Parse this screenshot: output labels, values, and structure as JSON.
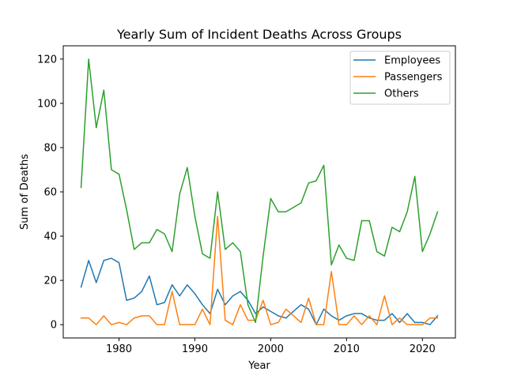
{
  "chart_data": {
    "type": "line",
    "title": "Yearly Sum of Incident Deaths Across Groups",
    "xlabel": "Year",
    "ylabel": "Sum of Deaths",
    "xlim": [
      1972.65,
      2024.35
    ],
    "ylim": [
      -6,
      126
    ],
    "xticks": [
      1980,
      1990,
      2000,
      2010,
      2020
    ],
    "yticks": [
      0,
      20,
      40,
      60,
      80,
      100,
      120
    ],
    "grid": false,
    "legend_position": "top-right",
    "x": [
      1975,
      1976,
      1977,
      1978,
      1979,
      1980,
      1981,
      1982,
      1983,
      1984,
      1985,
      1986,
      1987,
      1988,
      1989,
      1990,
      1991,
      1992,
      1993,
      1994,
      1995,
      1996,
      1997,
      1998,
      1999,
      2000,
      2001,
      2002,
      2003,
      2004,
      2005,
      2006,
      2007,
      2008,
      2009,
      2010,
      2011,
      2012,
      2013,
      2014,
      2015,
      2016,
      2017,
      2018,
      2019,
      2020,
      2021,
      2022
    ],
    "series": [
      {
        "name": "Employees",
        "color": "#1f77b4",
        "values": [
          17,
          29,
          19,
          29,
          30,
          28,
          11,
          12,
          15,
          22,
          9,
          10,
          18,
          13,
          18,
          14,
          9,
          5,
          16,
          9,
          13,
          15,
          11,
          5,
          8,
          6,
          4,
          3,
          6,
          9,
          7,
          0,
          7,
          4,
          2,
          4,
          5,
          5,
          3,
          2,
          2,
          5,
          1,
          5,
          1,
          1,
          0,
          4
        ]
      },
      {
        "name": "Passengers",
        "color": "#ff7f0e",
        "values": [
          3,
          3,
          0,
          4,
          0,
          1,
          0,
          3,
          4,
          4,
          0,
          0,
          15,
          0,
          0,
          0,
          7,
          0,
          49,
          2,
          0,
          9,
          2,
          2,
          11,
          0,
          1,
          7,
          4,
          1,
          12,
          0,
          0,
          24,
          0,
          0,
          4,
          0,
          4,
          0,
          13,
          0,
          3,
          0,
          0,
          0,
          3,
          3
        ]
      },
      {
        "name": "Others",
        "color": "#2ca02c",
        "values": [
          62,
          120,
          89,
          106,
          70,
          68,
          52,
          34,
          37,
          37,
          43,
          41,
          33,
          59,
          71,
          49,
          32,
          30,
          60,
          34,
          37,
          33,
          9,
          1,
          31,
          57,
          51,
          51,
          53,
          55,
          64,
          65,
          72,
          27,
          36,
          30,
          29,
          47,
          47,
          33,
          31,
          44,
          42,
          51,
          67,
          33,
          41,
          51
        ]
      }
    ]
  }
}
